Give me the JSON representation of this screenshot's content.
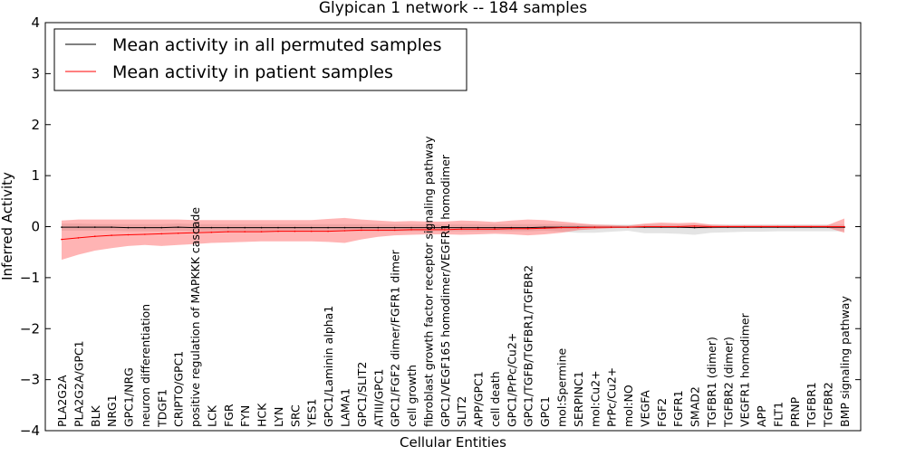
{
  "chart_data": {
    "type": "line",
    "title": "Glypican 1 network -- 184 samples",
    "xlabel": "Cellular Entities",
    "ylabel": "Inferred Activity",
    "ylim": [
      -4,
      4
    ],
    "yticks": [
      4,
      3,
      2,
      1,
      0,
      -1,
      -2,
      -3,
      -4
    ],
    "ytick_labels": [
      "4",
      "3",
      "2",
      "1",
      "0",
      "−1",
      "−2",
      "−3",
      "−4"
    ],
    "grid": false,
    "legend_position": "top-left",
    "categories": [
      "PLA2G2A",
      "PLA2G2A/GPC1",
      "BLK",
      "NRG1",
      "GPC1/NRG",
      "neuron differentiation",
      "TDGF1",
      "CRIPTO/GPC1",
      "positive regulation of MAPKKK cascade",
      "LCK",
      "FGR",
      "FYN",
      "HCK",
      "LYN",
      "SRC",
      "YES1",
      "GPC1/Laminin alpha1",
      "LAMA1",
      "GPC1/SLIT2",
      "ATIII/GPC1",
      "GPC1/FGF2 dimer/FGFR1 dimer",
      "cell growth",
      "fibroblast growth factor receptor signaling pathway",
      "GPC1/VEGF165 homodimer/VEGFR1 homodimer",
      "SLIT2",
      "APP/GPC1",
      "cell death",
      "GPC1/PrPc/Cu2+",
      "GPC1/TGFB/TGFBR1/TGFBR2",
      "GPC1",
      "mol:Spermine",
      "SERPINC1",
      "mol:Cu2+",
      "PrPc/Cu2+",
      "mol:NO",
      "VEGFA",
      "FGF2",
      "FGFR1",
      "SMAD2",
      "TGFBR1 (dimer)",
      "TGFBR2 (dimer)",
      "VEGFR1 homodimer",
      "APP",
      "FLT1",
      "PRNP",
      "TGFBR1",
      "TGFBR2",
      "BMP signaling pathway"
    ],
    "series": [
      {
        "name": "Mean activity in all permuted samples",
        "color": "#000000",
        "band_color": "#bbbbbb",
        "values": [
          -0.01,
          -0.01,
          -0.01,
          -0.01,
          -0.02,
          -0.02,
          -0.02,
          -0.01,
          -0.02,
          -0.02,
          -0.02,
          -0.02,
          -0.02,
          -0.02,
          -0.02,
          -0.02,
          -0.02,
          -0.02,
          -0.02,
          -0.02,
          -0.02,
          -0.02,
          -0.02,
          -0.02,
          -0.02,
          -0.02,
          -0.02,
          -0.02,
          -0.02,
          -0.01,
          -0.01,
          -0.01,
          -0.01,
          -0.01,
          -0.01,
          -0.01,
          -0.01,
          -0.01,
          -0.02,
          -0.01,
          -0.01,
          -0.01,
          -0.01,
          -0.01,
          -0.01,
          -0.01,
          -0.01,
          -0.01
        ],
        "upper": [
          0.06,
          0.06,
          0.05,
          0.05,
          0.05,
          0.05,
          0.05,
          0.06,
          0.05,
          0.05,
          0.05,
          0.05,
          0.05,
          0.05,
          0.05,
          0.05,
          0.05,
          0.05,
          0.05,
          0.05,
          0.05,
          0.05,
          0.05,
          0.05,
          0.05,
          0.05,
          0.05,
          0.05,
          0.05,
          0.05,
          0.05,
          0.04,
          0.04,
          0.04,
          0.04,
          0.04,
          0.04,
          0.04,
          0.04,
          0.04,
          0.04,
          0.04,
          0.04,
          0.04,
          0.04,
          0.04,
          0.04,
          0.04
        ],
        "lower": [
          -0.08,
          -0.08,
          -0.08,
          -0.08,
          -0.09,
          -0.09,
          -0.09,
          -0.08,
          -0.09,
          -0.09,
          -0.09,
          -0.09,
          -0.09,
          -0.09,
          -0.09,
          -0.09,
          -0.09,
          -0.09,
          -0.09,
          -0.09,
          -0.09,
          -0.09,
          -0.09,
          -0.09,
          -0.09,
          -0.09,
          -0.09,
          -0.09,
          -0.09,
          -0.08,
          -0.1,
          -0.12,
          -0.12,
          -0.1,
          -0.08,
          -0.13,
          -0.13,
          -0.14,
          -0.16,
          -0.12,
          -0.11,
          -0.1,
          -0.1,
          -0.09,
          -0.09,
          -0.09,
          -0.09,
          -0.09
        ]
      },
      {
        "name": "Mean activity in patient samples",
        "color": "#ff0000",
        "band_color": "#ff4444",
        "values": [
          -0.25,
          -0.22,
          -0.19,
          -0.17,
          -0.16,
          -0.15,
          -0.14,
          -0.13,
          -0.12,
          -0.11,
          -0.1,
          -0.1,
          -0.1,
          -0.09,
          -0.09,
          -0.09,
          -0.09,
          -0.08,
          -0.07,
          -0.07,
          -0.07,
          -0.06,
          -0.06,
          -0.06,
          -0.05,
          -0.05,
          -0.05,
          -0.04,
          -0.04,
          -0.03,
          -0.02,
          -0.02,
          -0.01,
          -0.01,
          -0.01,
          0.0,
          0.0,
          0.0,
          0.01,
          0.0,
          0.0,
          0.0,
          0.0,
          0.0,
          0.0,
          0.0,
          0.0,
          0.0
        ],
        "upper": [
          0.12,
          0.14,
          0.14,
          0.14,
          0.14,
          0.14,
          0.14,
          0.14,
          0.13,
          0.13,
          0.13,
          0.13,
          0.13,
          0.13,
          0.13,
          0.13,
          0.15,
          0.17,
          0.14,
          0.12,
          0.1,
          0.11,
          0.1,
          0.1,
          0.12,
          0.11,
          0.09,
          0.12,
          0.14,
          0.13,
          0.1,
          0.07,
          0.04,
          0.03,
          0.02,
          0.06,
          0.08,
          0.07,
          0.08,
          0.04,
          0.03,
          0.03,
          0.03,
          0.03,
          0.03,
          0.03,
          0.03,
          0.16
        ],
        "lower": [
          -0.65,
          -0.55,
          -0.47,
          -0.42,
          -0.38,
          -0.36,
          -0.38,
          -0.36,
          -0.34,
          -0.32,
          -0.31,
          -0.3,
          -0.29,
          -0.29,
          -0.29,
          -0.29,
          -0.3,
          -0.32,
          -0.25,
          -0.2,
          -0.17,
          -0.16,
          -0.15,
          -0.15,
          -0.16,
          -0.15,
          -0.14,
          -0.15,
          -0.17,
          -0.15,
          -0.12,
          -0.07,
          -0.05,
          -0.03,
          -0.02,
          -0.01,
          -0.02,
          -0.02,
          -0.03,
          -0.03,
          -0.02,
          -0.02,
          -0.02,
          -0.02,
          -0.02,
          -0.02,
          -0.02,
          -0.12
        ]
      }
    ]
  }
}
